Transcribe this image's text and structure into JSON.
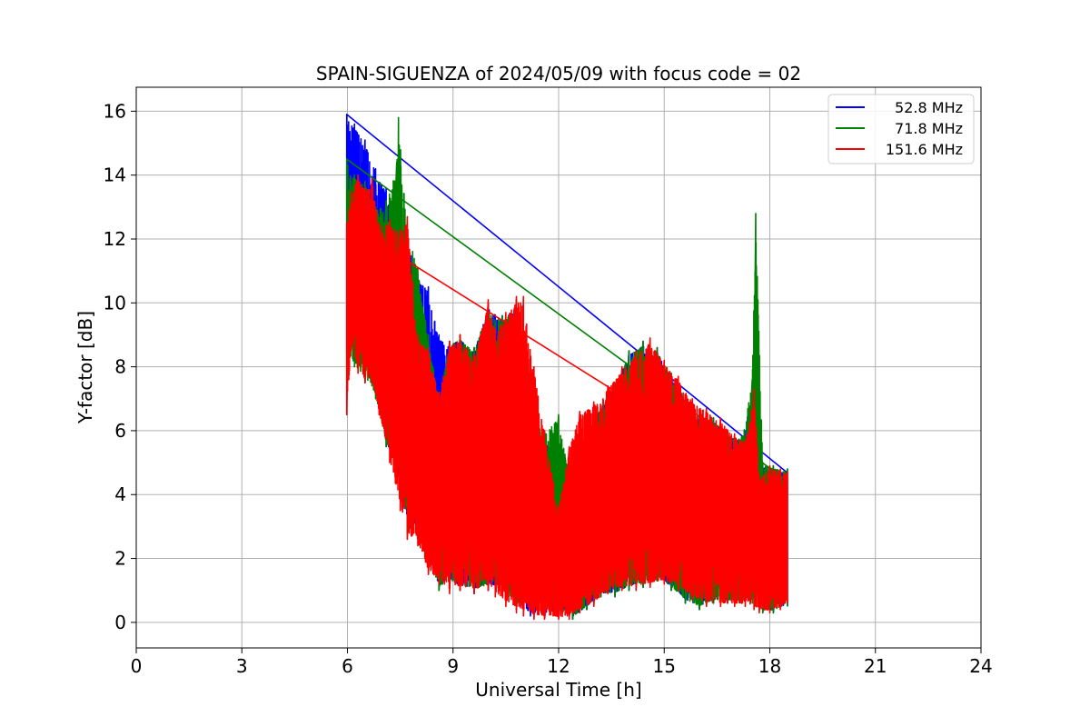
{
  "chart_data": {
    "type": "line",
    "title": "SPAIN-SIGUENZA of 2024/05/09 with focus code = 02",
    "xlabel": "Universal Time [h]",
    "ylabel": "Y-factor [dB]",
    "xlim": [
      0,
      24
    ],
    "ylim": [
      -0.8,
      16.75
    ],
    "xticks": [
      0,
      3,
      6,
      9,
      12,
      15,
      18,
      21,
      24
    ],
    "yticks": [
      0,
      2,
      4,
      6,
      8,
      10,
      12,
      14,
      16
    ],
    "grid": true,
    "legend_position": "top-right",
    "series": [
      {
        "name": "  52.8 MHz",
        "color": "#0000ff",
        "envelope": {
          "x": [
            5.98,
            6.2,
            6.5,
            6.8,
            7.1,
            7.4,
            7.7,
            8.0,
            8.3,
            8.6,
            8.9,
            9.2,
            9.6,
            10.0,
            10.4,
            10.8,
            11.2,
            11.6,
            12.0,
            12.4,
            12.8,
            13.2,
            13.6,
            14.0,
            14.4,
            14.8,
            15.2,
            15.6,
            16.0,
            16.4,
            16.8,
            17.2,
            17.55,
            17.8,
            18.1,
            18.5
          ],
          "high": [
            15.9,
            15.6,
            15.1,
            14.2,
            13.6,
            12.9,
            12.1,
            10.9,
            10.5,
            9.0,
            8.8,
            9.0,
            8.6,
            10.0,
            9.6,
            10.1,
            6.5,
            5.8,
            5.0,
            4.0,
            6.0,
            6.8,
            7.5,
            8.5,
            8.8,
            8.6,
            7.8,
            7.1,
            6.5,
            6.4,
            6.0,
            5.8,
            7.4,
            5.0,
            4.9,
            4.8
          ],
          "low": [
            8.5,
            8.6,
            8.0,
            7.5,
            5.5,
            4.8,
            2.8,
            2.8,
            2.0,
            1.0,
            1.2,
            1.0,
            0.9,
            1.0,
            1.0,
            0.4,
            0.2,
            0.2,
            0.3,
            0.1,
            0.4,
            0.8,
            0.8,
            1.0,
            1.1,
            1.3,
            1.0,
            0.6,
            0.4,
            0.6,
            0.6,
            0.6,
            0.6,
            0.3,
            0.3,
            0.5
          ]
        }
      },
      {
        "name": "  71.8 MHz",
        "color": "#008000",
        "envelope": {
          "x": [
            5.98,
            6.2,
            6.5,
            6.8,
            7.1,
            7.4,
            7.45,
            7.7,
            8.0,
            8.3,
            8.6,
            8.9,
            9.2,
            9.6,
            10.0,
            10.4,
            10.8,
            11.2,
            11.6,
            12.0,
            12.4,
            12.8,
            13.2,
            13.6,
            14.0,
            14.4,
            14.8,
            15.2,
            15.6,
            16.0,
            16.4,
            16.8,
            17.2,
            17.5,
            17.6,
            17.8,
            18.1,
            18.5
          ],
          "high": [
            14.5,
            14.0,
            13.8,
            13.0,
            13.2,
            14.4,
            15.8,
            12.5,
            11.1,
            9.0,
            7.0,
            8.8,
            9.0,
            8.6,
            10.0,
            9.6,
            10.1,
            6.5,
            6.0,
            6.5,
            4.0,
            6.0,
            6.8,
            7.5,
            8.5,
            8.8,
            8.6,
            7.8,
            7.1,
            6.5,
            6.4,
            6.0,
            5.8,
            7.6,
            12.8,
            5.0,
            4.9,
            4.8
          ],
          "low": [
            8.0,
            8.0,
            7.5,
            7.0,
            5.5,
            4.8,
            4.8,
            2.8,
            2.6,
            2.0,
            1.0,
            1.2,
            1.0,
            0.9,
            1.0,
            1.0,
            0.4,
            0.8,
            0.4,
            0.3,
            0.1,
            0.4,
            0.8,
            0.8,
            1.0,
            1.1,
            1.3,
            1.0,
            0.6,
            0.4,
            0.6,
            0.6,
            0.6,
            0.6,
            0.6,
            0.3,
            0.3,
            0.5
          ]
        }
      },
      {
        "name": "151.6 MHz",
        "color": "#ff0000",
        "envelope": {
          "x": [
            5.98,
            6.1,
            6.3,
            6.5,
            6.7,
            6.9,
            7.2,
            7.5,
            7.7,
            8.0,
            8.3,
            8.6,
            8.9,
            9.2,
            9.6,
            10.0,
            10.2,
            10.5,
            10.8,
            11.0,
            11.3,
            11.6,
            12.0,
            12.3,
            12.6,
            13.0,
            13.4,
            13.8,
            14.2,
            14.6,
            15.0,
            15.4,
            15.8,
            16.2,
            16.6,
            17.0,
            17.3,
            17.55,
            17.7,
            18.0,
            18.3,
            18.5
          ],
          "high": [
            12.5,
            13.5,
            14.0,
            13.6,
            13.9,
            12.5,
            12.6,
            12.3,
            12.7,
            9.0,
            8.6,
            7.2,
            8.8,
            9.0,
            8.4,
            10.1,
            9.2,
            9.7,
            10.2,
            10.2,
            8.0,
            6.0,
            3.6,
            5.5,
            6.6,
            6.9,
            7.4,
            8.0,
            8.5,
            8.9,
            8.2,
            7.7,
            7.0,
            6.7,
            6.4,
            5.9,
            5.7,
            7.3,
            4.6,
            4.9,
            4.8,
            4.7
          ],
          "low": [
            6.5,
            8.5,
            7.8,
            7.5,
            7.5,
            6.5,
            5.0,
            3.5,
            2.6,
            2.4,
            1.5,
            1.2,
            0.9,
            1.0,
            0.9,
            1.0,
            0.8,
            0.5,
            0.3,
            0.2,
            0.1,
            0.1,
            0.1,
            0.1,
            0.3,
            0.5,
            0.9,
            1.0,
            1.0,
            1.1,
            1.2,
            1.0,
            0.7,
            0.5,
            0.5,
            0.5,
            0.5,
            0.4,
            0.3,
            0.3,
            0.4,
            0.6
          ]
        }
      }
    ]
  }
}
